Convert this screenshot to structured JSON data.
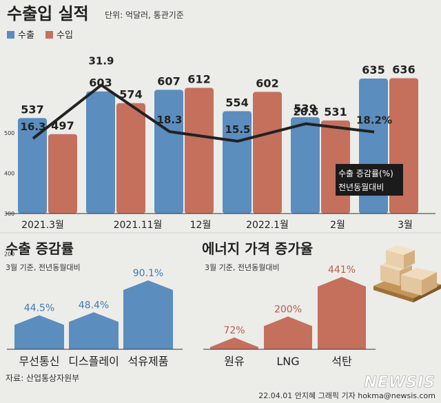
{
  "header": {
    "title": "수출입 실적",
    "unit": "단위: 억달러, 통관기준"
  },
  "legend": {
    "export_label": "수출",
    "import_label": "수입"
  },
  "colors": {
    "export": "#5b8dbf",
    "import": "#c4705d",
    "line": "#222222",
    "background": "#ecece9"
  },
  "annotation": {
    "line1": "수출 증감률(%)",
    "line2": "전년동월대비"
  },
  "chart_data": [
    {
      "type": "bar",
      "categories": [
        "2021.3월",
        "2021.11월",
        "12월",
        "2022.1월",
        "2월",
        "3월"
      ],
      "series": [
        {
          "name": "수출",
          "values": [
            537,
            603,
            607,
            554,
            539,
            635
          ]
        },
        {
          "name": "수입",
          "values": [
            497,
            574,
            612,
            602,
            531,
            636
          ]
        }
      ],
      "line_series": {
        "name": "수출 증감률(%)",
        "values": [
          16.3,
          31.9,
          18.3,
          15.5,
          20.6,
          18.2
        ],
        "labels": [
          "16.3",
          "31.9",
          "18.3",
          "15.5",
          "20.6",
          "18.2%"
        ]
      },
      "yticks": [
        200,
        300,
        400,
        500
      ],
      "title": "수출입 실적"
    },
    {
      "type": "bar",
      "title": "수출 증감률",
      "subtitle": "3월 기준, 전년동월대비",
      "categories": [
        "무선통신",
        "디스플레이",
        "석유제품"
      ],
      "values": [
        44.5,
        48.4,
        90.1
      ],
      "value_labels": [
        "44.5%",
        "48.4%",
        "90.1%"
      ]
    },
    {
      "type": "bar",
      "title": "에너지 가격 증가율",
      "subtitle": "3월 기준, 전년동월대비",
      "categories": [
        "원유",
        "LNG",
        "석탄"
      ],
      "values": [
        72,
        200,
        441
      ],
      "value_labels": [
        "72%",
        "200%",
        "441%"
      ]
    }
  ],
  "source": "자료: 산업통상자원부",
  "credit": "22.04.01 안지혜 그래픽 기자 hokma@newsis.com",
  "watermark": "NEWSIS"
}
